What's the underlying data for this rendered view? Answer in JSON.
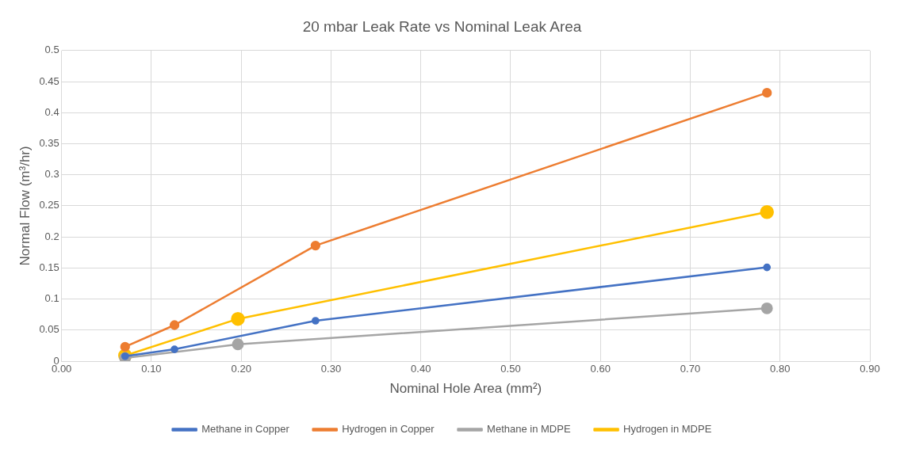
{
  "chart_data": {
    "type": "line",
    "title": "20 mbar Leak Rate vs Nominal Leak Area",
    "xlabel": "Nominal Hole Area (mm²)",
    "ylabel": "Normal Flow (m³/hr)",
    "series": [
      {
        "name": "Methane in Copper",
        "color": "#4472c4",
        "x": [
          0.0707,
          0.1257,
          0.2827,
          0.7854
        ],
        "values": [
          0.008,
          0.019,
          0.065,
          0.151
        ]
      },
      {
        "name": "Hydrogen in Copper",
        "color": "#ed7d31",
        "x": [
          0.0707,
          0.1257,
          0.2827,
          0.7854
        ],
        "values": [
          0.023,
          0.058,
          0.186,
          0.432
        ]
      },
      {
        "name": "Methane in MDPE",
        "color": "#a5a5a5",
        "x": [
          0.0707,
          0.1963,
          0.7854
        ],
        "values": [
          0.005,
          0.027,
          0.085
        ]
      },
      {
        "name": "Hydrogen in MDPE",
        "color": "#ffc000",
        "x": [
          0.0707,
          0.1963,
          0.7854
        ],
        "values": [
          0.009,
          0.068,
          0.24
        ]
      }
    ],
    "xlim": [
      0,
      0.9
    ],
    "xticks": [
      {
        "value": 0,
        "label": "0.00"
      },
      {
        "value": 0.1,
        "label": "0.10"
      },
      {
        "value": 0.2,
        "label": "0.20"
      },
      {
        "value": 0.3,
        "label": "0.30"
      },
      {
        "value": 0.4,
        "label": "0.40"
      },
      {
        "value": 0.5,
        "label": "0.50"
      },
      {
        "value": 0.6,
        "label": "0.60"
      },
      {
        "value": 0.7,
        "label": "0.70"
      },
      {
        "value": 0.8,
        "label": "0.80"
      },
      {
        "value": 0.9,
        "label": "0.90"
      }
    ],
    "ylim": [
      0,
      0.5
    ],
    "yticks": [
      0,
      0.05,
      0.1,
      0.15,
      0.2,
      0.25,
      0.3,
      0.35,
      0.4,
      0.45,
      0.5
    ],
    "grid": true,
    "legend": "bottom",
    "marker": "circle",
    "line_style": "solid"
  }
}
